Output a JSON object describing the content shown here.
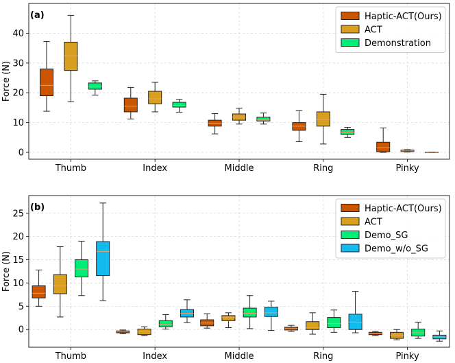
{
  "chart_data": [
    {
      "type": "box",
      "panel_label": "(a)",
      "title": "",
      "xlabel": "",
      "ylabel": "Force (N)",
      "ylim": [
        -2.3,
        50
      ],
      "yticks": [
        0,
        10,
        20,
        30,
        40
      ],
      "grid": true,
      "legend_position": "top-right",
      "categories": [
        "Thumb",
        "Index",
        "Middle",
        "Ring",
        "Pinky"
      ],
      "series": [
        {
          "name": "Haptic-ACT(Ours)",
          "color": "#cc5500",
          "boxes": [
            {
              "whisker_low": 13.8,
              "q1": 19.0,
              "median": 22.5,
              "q3": 28.0,
              "whisker_high": 37.2
            },
            {
              "whisker_low": 11.2,
              "q1": 13.6,
              "median": 15.5,
              "q3": 18.2,
              "whisker_high": 21.8
            },
            {
              "whisker_low": 6.2,
              "q1": 8.8,
              "median": 9.8,
              "q3": 10.8,
              "whisker_high": 13.0
            },
            {
              "whisker_low": 3.6,
              "q1": 7.4,
              "median": 8.8,
              "q3": 10.0,
              "whisker_high": 14.0
            },
            {
              "whisker_low": 0.0,
              "q1": 0.2,
              "median": 1.5,
              "q3": 3.4,
              "whisker_high": 8.2
            }
          ]
        },
        {
          "name": "ACT",
          "color": "#d9a020",
          "boxes": [
            {
              "whisker_low": 17.0,
              "q1": 27.5,
              "median": 32.5,
              "q3": 37.0,
              "whisker_high": 46.0
            },
            {
              "whisker_low": 13.6,
              "q1": 16.3,
              "median": 18.0,
              "q3": 20.5,
              "whisker_high": 23.5
            },
            {
              "whisker_low": 9.5,
              "q1": 10.8,
              "median": 11.8,
              "q3": 12.9,
              "whisker_high": 14.8
            },
            {
              "whisker_low": 2.8,
              "q1": 8.8,
              "median": 11.0,
              "q3": 13.6,
              "whisker_high": 19.5
            },
            {
              "whisker_low": 0.1,
              "q1": 0.25,
              "median": 0.5,
              "q3": 0.75,
              "whisker_high": 0.9
            }
          ]
        },
        {
          "name": "Demonstration",
          "color": "#00ee77",
          "boxes": [
            {
              "whisker_low": 19.2,
              "q1": 21.2,
              "median": 22.2,
              "q3": 23.3,
              "whisker_high": 24.0
            },
            {
              "whisker_low": 13.5,
              "q1": 15.2,
              "median": 15.8,
              "q3": 16.8,
              "whisker_high": 17.8
            },
            {
              "whisker_low": 9.5,
              "q1": 10.5,
              "median": 11.0,
              "q3": 11.8,
              "whisker_high": 13.2
            },
            {
              "whisker_low": 5.0,
              "q1": 6.0,
              "median": 6.8,
              "q3": 7.7,
              "whisker_high": 8.4
            },
            {
              "whisker_low": 0.0,
              "q1": 0.0,
              "median": 0.0,
              "q3": 0.05,
              "whisker_high": 0.1
            }
          ]
        }
      ]
    },
    {
      "type": "box",
      "panel_label": "(b)",
      "title": "",
      "xlabel": "",
      "ylabel": "Force (N)",
      "ylim": [
        -3.8,
        28.8
      ],
      "yticks": [
        0,
        5,
        10,
        15,
        20,
        25
      ],
      "grid": true,
      "legend_position": "top-right",
      "categories": [
        "Thumb",
        "Index",
        "Middle",
        "Ring",
        "Pinky"
      ],
      "series": [
        {
          "name": "Haptic-ACT(Ours)",
          "color": "#cc5500",
          "boxes": [
            {
              "whisker_low": 5.0,
              "q1": 6.8,
              "median": 7.8,
              "q3": 9.4,
              "whisker_high": 12.8
            },
            {
              "whisker_low": -0.9,
              "q1": -0.7,
              "median": -0.5,
              "q3": -0.3,
              "whisker_high": -0.1
            },
            {
              "whisker_low": 0.3,
              "q1": 0.8,
              "median": 1.4,
              "q3": 2.1,
              "whisker_high": 3.4
            },
            {
              "whisker_low": -0.4,
              "q1": -0.1,
              "median": 0.2,
              "q3": 0.5,
              "whisker_high": 0.9
            },
            {
              "whisker_low": -1.3,
              "q1": -1.1,
              "median": -0.8,
              "q3": -0.6,
              "whisker_high": -0.4
            }
          ]
        },
        {
          "name": "ACT",
          "color": "#d9a020",
          "boxes": [
            {
              "whisker_low": 2.7,
              "q1": 7.7,
              "median": 9.5,
              "q3": 11.8,
              "whisker_high": 17.8
            },
            {
              "whisker_low": -1.3,
              "q1": -1.1,
              "median": -0.5,
              "q3": 0.1,
              "whisker_high": 0.6
            },
            {
              "whisker_low": 0.4,
              "q1": 1.9,
              "median": 2.6,
              "q3": 3.0,
              "whisker_high": 3.6
            },
            {
              "whisker_low": -1.0,
              "q1": 0.0,
              "median": 0.4,
              "q3": 1.7,
              "whisker_high": 3.6
            },
            {
              "whisker_low": -2.2,
              "q1": -1.9,
              "median": -1.2,
              "q3": -0.6,
              "whisker_high": 0.0
            }
          ]
        },
        {
          "name": "Demo_SG",
          "color": "#00ee77",
          "boxes": [
            {
              "whisker_low": 7.3,
              "q1": 11.3,
              "median": 13.0,
              "q3": 15.0,
              "whisker_high": 19.0
            },
            {
              "whisker_low": 0.1,
              "q1": 0.6,
              "median": 1.1,
              "q3": 1.9,
              "whisker_high": 3.2
            },
            {
              "whisker_low": 0.2,
              "q1": 2.7,
              "median": 3.5,
              "q3": 4.6,
              "whisker_high": 7.3
            },
            {
              "whisker_low": -0.6,
              "q1": 0.4,
              "median": 1.3,
              "q3": 2.6,
              "whisker_high": 4.2
            },
            {
              "whisker_low": -1.9,
              "q1": -1.4,
              "median": -0.7,
              "q3": 0.1,
              "whisker_high": 1.6
            }
          ]
        },
        {
          "name": "Demo_w/o_SG",
          "color": "#11bbee",
          "boxes": [
            {
              "whisker_low": 6.2,
              "q1": 11.6,
              "median": 16.8,
              "q3": 18.9,
              "whisker_high": 27.2
            },
            {
              "whisker_low": 1.5,
              "q1": 2.7,
              "median": 3.5,
              "q3": 4.3,
              "whisker_high": 6.4
            },
            {
              "whisker_low": -0.2,
              "q1": 2.8,
              "median": 3.6,
              "q3": 4.8,
              "whisker_high": 6.1
            },
            {
              "whisker_low": -0.7,
              "q1": 0.0,
              "median": 1.6,
              "q3": 3.3,
              "whisker_high": 8.2
            },
            {
              "whisker_low": -2.5,
              "q1": -2.0,
              "median": -1.6,
              "q3": -1.2,
              "whisker_high": -0.3
            }
          ]
        }
      ]
    }
  ]
}
